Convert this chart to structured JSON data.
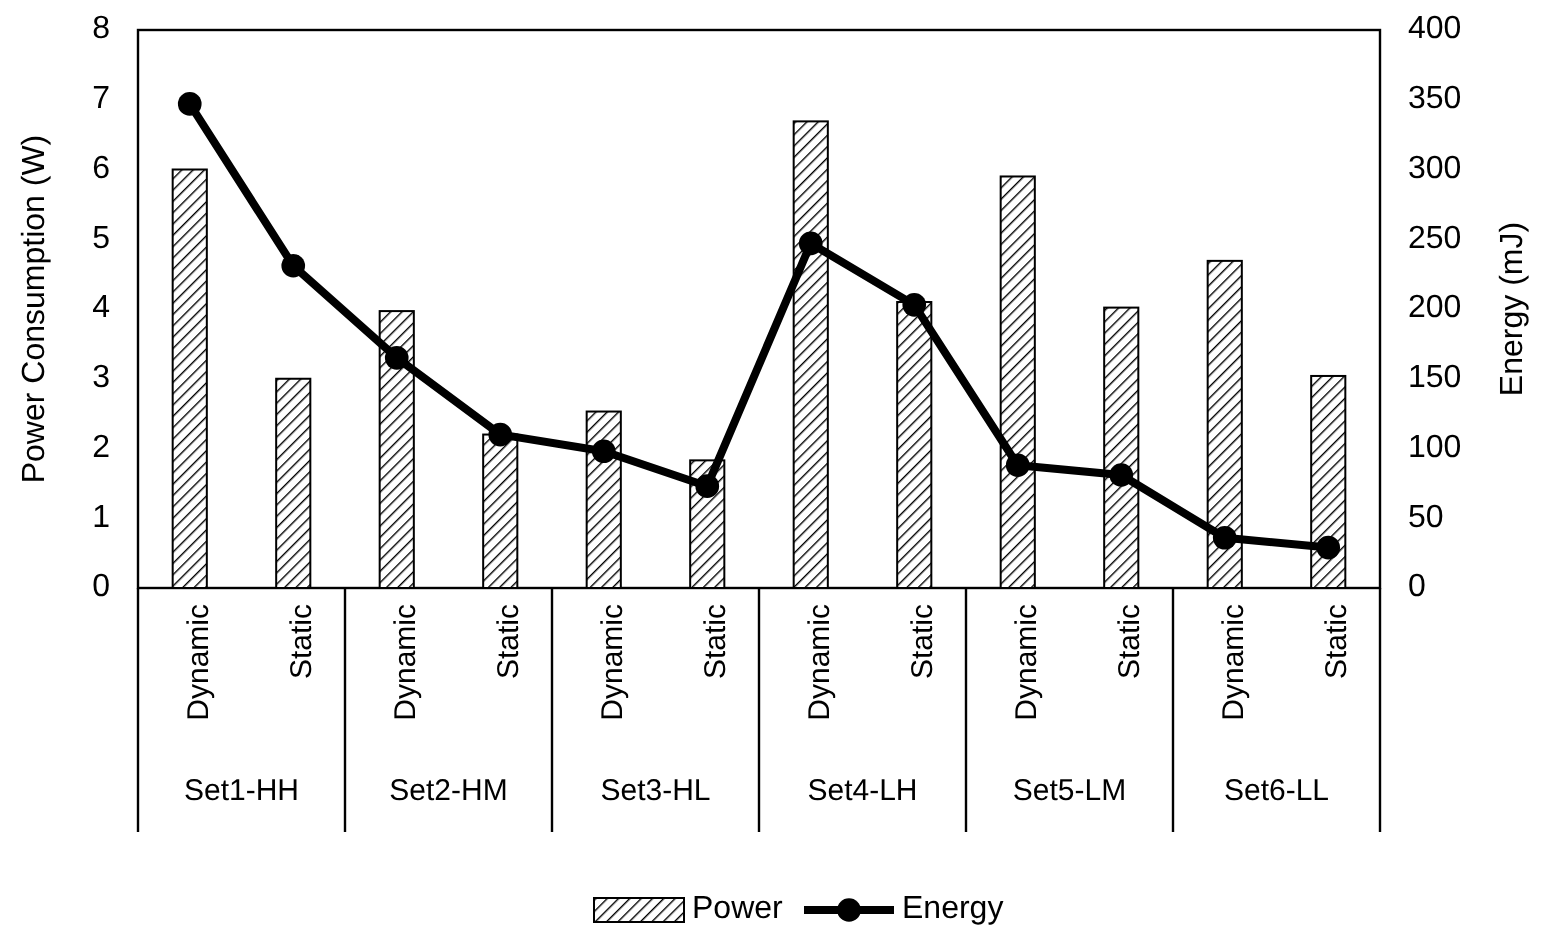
{
  "chart_data": {
    "type": "bar",
    "ylabel": "Power Consumption (W)",
    "y2label": "Energy (mJ)",
    "categories": [
      "Dynamic",
      "Static",
      "Dynamic",
      "Static",
      "Dynamic",
      "Static",
      "Dynamic",
      "Static",
      "Dynamic",
      "Static",
      "Dynamic",
      "Static"
    ],
    "annotations": [
      "Set1-HH",
      "Set2-HM",
      "Set3-HL",
      "Set4-LH",
      "Set5-LM",
      "Set6-LL"
    ],
    "series": [
      {
        "name": "Power",
        "color": "#000000",
        "values": [
          6.0,
          3.0,
          3.97,
          2.2,
          2.53,
          1.83,
          6.69,
          4.1,
          5.9,
          4.02,
          4.69,
          3.04
        ]
      },
      {
        "name": "Energy",
        "type": "line",
        "axis": "y2",
        "color": "#000000",
        "marker": "circle",
        "values": [
          347,
          231,
          165,
          110,
          98,
          73,
          247,
          203,
          88,
          81,
          36,
          29
        ]
      }
    ],
    "ylim": [
      0,
      8
    ],
    "yticks": [
      0,
      1,
      2,
      3,
      4,
      5,
      6,
      7,
      8
    ],
    "y2lim": [
      0,
      400
    ],
    "y2ticks": [
      0,
      50,
      100,
      150,
      200,
      250,
      300,
      350,
      400
    ],
    "legend": "bottom",
    "grid": false
  }
}
